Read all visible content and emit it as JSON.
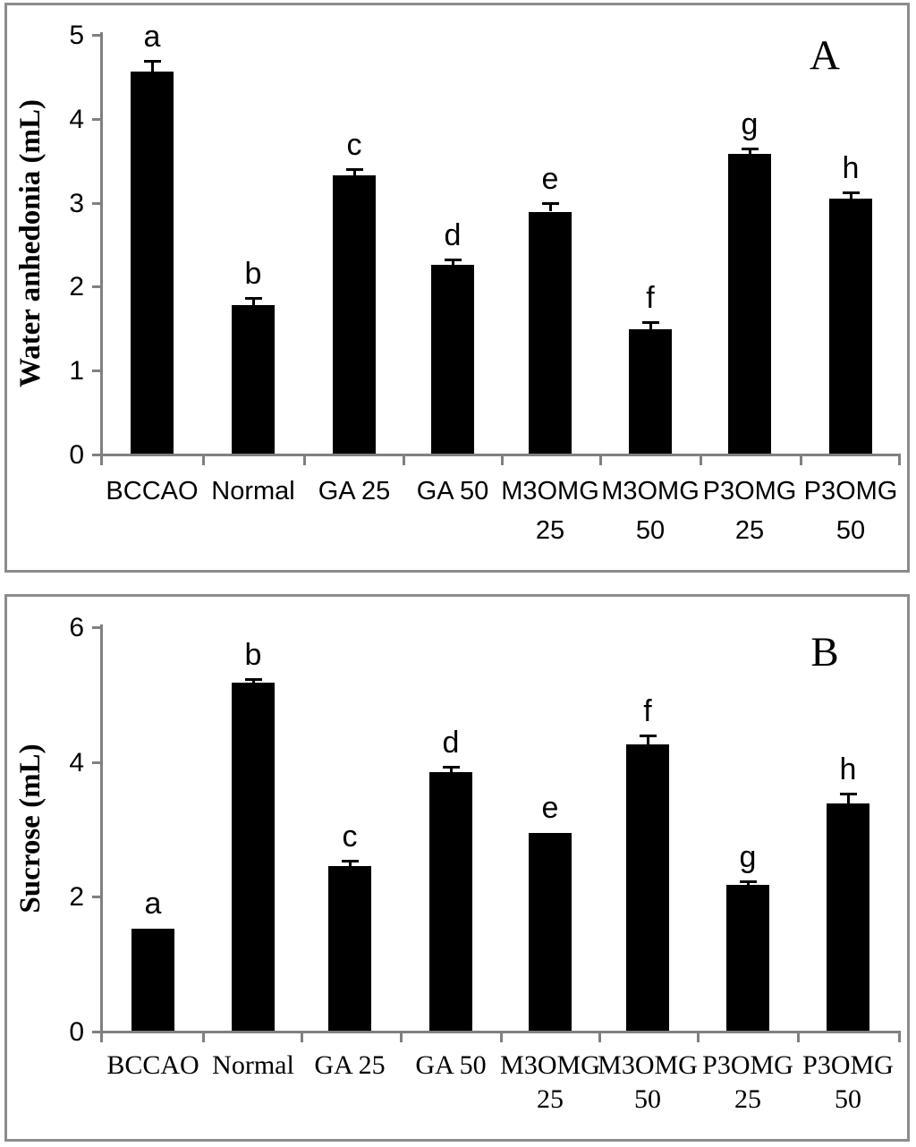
{
  "figure_title": "",
  "colors": {
    "bar": "#000000",
    "axis": "#808080",
    "frame": "#8c8c8c",
    "text": "#000000",
    "background": "#ffffff"
  },
  "chart_data": [
    {
      "type": "bar",
      "panel_letter": "A",
      "title": "",
      "xlabel": "",
      "ylabel": "Water anhedonia (mL)",
      "ylim": [
        0,
        5
      ],
      "yticks": [
        "0",
        "1",
        "2",
        "3",
        "4",
        "5"
      ],
      "ytick_values": [
        0,
        1,
        2,
        3,
        4,
        5
      ],
      "grid": "off",
      "legend": "none",
      "categories": [
        "BCCAO",
        "Normal",
        "GA 25",
        "GA 50",
        "M3OMG 25",
        "M3OMG 50",
        "P3OMG 25",
        "P3OMG 50"
      ],
      "tick_lines": [
        [
          "BCCAO"
        ],
        [
          "Normal"
        ],
        [
          "GA 25"
        ],
        [
          "GA 50"
        ],
        [
          "M3OMG",
          "25"
        ],
        [
          "M3OMG",
          "50"
        ],
        [
          "P3OMG",
          "25"
        ],
        [
          "P3OMG",
          "50"
        ]
      ],
      "values": [
        4.55,
        1.77,
        3.32,
        2.25,
        2.88,
        1.48,
        3.57,
        3.04
      ],
      "errors": [
        0.12,
        0.07,
        0.06,
        0.05,
        0.09,
        0.08,
        0.05,
        0.06
      ],
      "sig_letters": [
        "a",
        "b",
        "c",
        "d",
        "e",
        "f",
        "g",
        "h"
      ]
    },
    {
      "type": "bar",
      "panel_letter": "B",
      "title": "",
      "xlabel": "",
      "ylabel": "Sucrose (mL)",
      "ylim": [
        0,
        6
      ],
      "yticks": [
        "0",
        "2",
        "4",
        "6"
      ],
      "ytick_values": [
        0,
        2,
        4,
        6
      ],
      "grid": "off",
      "legend": "none",
      "categories": [
        "BCCAO",
        "Normal",
        "GA 25",
        "GA 50",
        "M3OMG 25",
        "M3OMG 50",
        "P3OMG 25",
        "P3OMG 50"
      ],
      "tick_lines": [
        [
          "BCCAO"
        ],
        [
          "Normal"
        ],
        [
          "GA 25"
        ],
        [
          "GA 50"
        ],
        [
          "M3OMG",
          "25"
        ],
        [
          "M3OMG",
          "50"
        ],
        [
          "P3OMG",
          "25"
        ],
        [
          "P3OMG",
          "50"
        ]
      ],
      "values": [
        1.52,
        5.17,
        2.44,
        3.84,
        2.94,
        4.25,
        2.16,
        3.37
      ],
      "errors": [
        0,
        0.04,
        0.07,
        0.06,
        0,
        0.12,
        0.04,
        0.13
      ],
      "sig_letters": [
        "a",
        "b",
        "c",
        "d",
        "e",
        "f",
        "g",
        "h"
      ]
    }
  ]
}
